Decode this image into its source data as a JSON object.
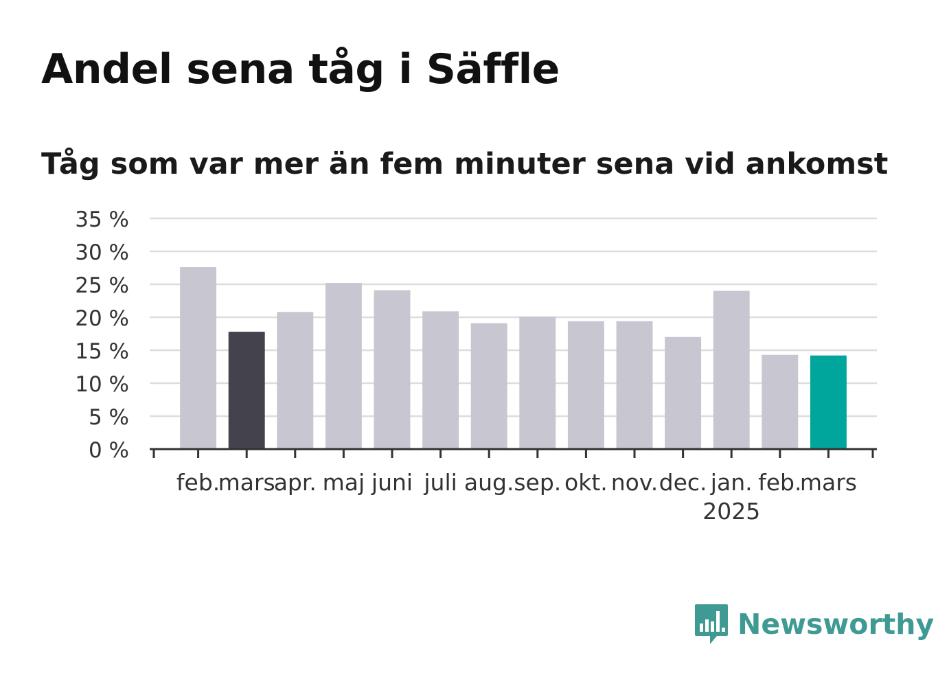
{
  "title": "Andel sena tåg i Säffle",
  "subtitle": "Tåg som var mer än fem minuter sena vid ankomst",
  "brand": {
    "name": "Newsworthy",
    "icon": "bar-chart-speech-bubble-icon",
    "color": "#3e9a92"
  },
  "colors": {
    "default": "#c8c7d1",
    "previous_year": "#43424d",
    "current": "#00a59b",
    "grid": "#dddddd",
    "axis": "#333333"
  },
  "chart_data": {
    "type": "bar",
    "categories": [
      "feb.",
      "mars",
      "apr.",
      "maj",
      "juni",
      "juli",
      "aug.",
      "sep.",
      "okt.",
      "nov.",
      "dec.",
      "jan.",
      "feb.",
      "mars"
    ],
    "year_labels": [
      {
        "index": 11,
        "label": "2025"
      }
    ],
    "values": [
      27.6,
      17.8,
      20.8,
      25.2,
      24.1,
      20.9,
      19.1,
      20.1,
      19.4,
      19.4,
      17.0,
      24.0,
      14.3,
      14.2
    ],
    "highlight": {
      "previous_year_index": 1,
      "current_index": 13
    },
    "yticks": [
      "0 %",
      "5 %",
      "10 %",
      "15 %",
      "20 %",
      "25 %",
      "30 %",
      "35 %"
    ],
    "ylim": [
      0,
      35
    ],
    "grid": true,
    "legend": "none"
  }
}
